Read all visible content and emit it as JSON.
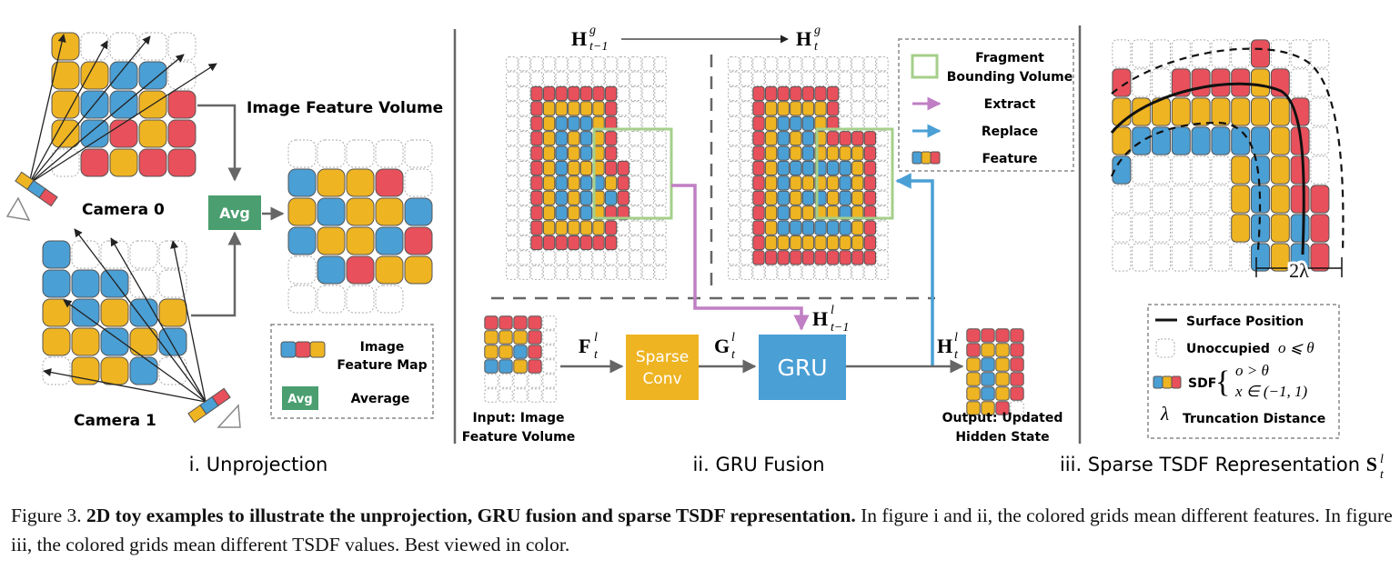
{
  "colors": {
    "red": "#e8505b",
    "blue": "#4a9fd5",
    "yellow": "#eeb422",
    "empty_stroke": "#b0b0b0",
    "green_box": "#a5cf8a",
    "avg_green": "#4a9e6f",
    "extract_purple": "#c07fc4",
    "replace_blue": "#4a9fd5",
    "gru_blue": "#4a9fd5",
    "sparse_conv_yellow": "#eeb422",
    "divider": "#666666"
  },
  "panel_i": {
    "subtitle": "i. Unprojection",
    "camera0_label": "Camera 0",
    "camera1_label": "Camera 1",
    "volume_title": "Image Feature Volume",
    "avg_label": "Avg",
    "legend_feature_map_line1": "Image",
    "legend_feature_map_line2": "Feature Map",
    "legend_avg_box": "Avg",
    "legend_average": "Average"
  },
  "panel_ii": {
    "subtitle": "ii. GRU Fusion",
    "hg_prev": "H",
    "hg_prev_sup": "g",
    "hg_prev_sub": "t−1",
    "hg_cur": "H",
    "hg_cur_sup": "g",
    "hg_cur_sub": "t",
    "legend_fragment_line1": "Fragment",
    "legend_fragment_line2": "Bounding Volume",
    "legend_extract": "Extract",
    "legend_replace": "Replace",
    "legend_feature": "Feature",
    "sparse_conv_line1": "Sparse",
    "sparse_conv_line2": "Conv",
    "gru_label": "GRU",
    "f_label": "F",
    "f_sup": "l",
    "f_sub": "t",
    "g_label": "G",
    "g_sup": "l",
    "g_sub": "t",
    "h_prev_label": "H",
    "h_prev_sup": "l",
    "h_prev_sub": "t−1",
    "h_out_label": "H",
    "h_out_sup": "l",
    "h_out_sub": "t",
    "input_line1": "Input: Image",
    "input_line2": "Feature Volume",
    "output_line1": "Output: Updated",
    "output_line2": "Hidden State"
  },
  "panel_iii": {
    "subtitle": "iii. Sparse TSDF Representation ",
    "subtitle_symbol": "S",
    "subtitle_sup": "l",
    "subtitle_sub": "t",
    "two_lambda": "2λ",
    "legend_surface": "Surface Position",
    "legend_unoccupied": "Unoccupied",
    "legend_unoccupied_cond": "o ⩽ θ",
    "legend_sdf": "SDF",
    "legend_sdf_cond1": "o > θ",
    "legend_sdf_cond2": "x ∈ (−1, 1)",
    "legend_lambda": "λ",
    "legend_truncation": "Truncation Distance"
  },
  "caption": {
    "prefix": "Figure 3. ",
    "bold": "2D toy examples to illustrate the unprojection, GRU fusion and sparse TSDF representation.",
    "rest": " In figure i and ii, the colored grids mean different features. In figure iii, the colored grids mean different TSDF values. Best viewed in color."
  }
}
